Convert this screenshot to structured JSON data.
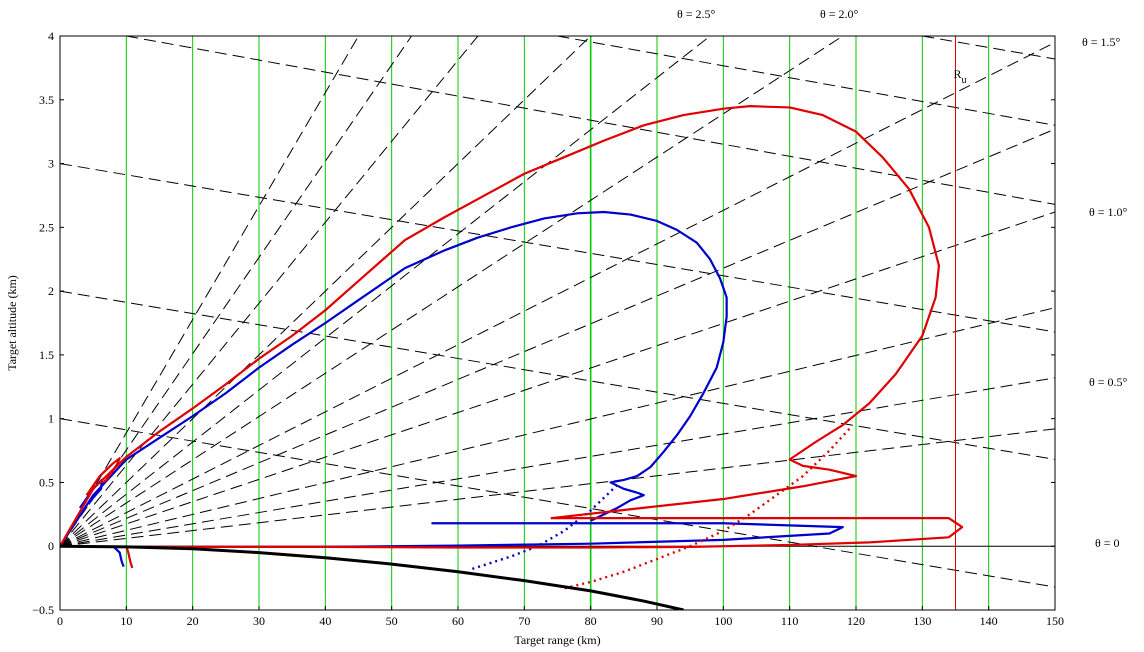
{
  "chart_data": {
    "type": "line",
    "title": "",
    "xlabel": "Target range (km)",
    "ylabel": "Target altitude (km)",
    "xlim": [
      0,
      150
    ],
    "ylim": [
      -0.5,
      4
    ],
    "xticks": [
      "0",
      "10",
      "20",
      "30",
      "40",
      "50",
      "60",
      "70",
      "80",
      "90",
      "100",
      "110",
      "120",
      "130",
      "140",
      "150"
    ],
    "yticks": [
      "−0.5",
      "0",
      "0.5",
      "1",
      "1.5",
      "2",
      "2.5",
      "3",
      "3.5",
      "4"
    ],
    "grid": {
      "vertical": true,
      "horizontal": false,
      "color": "#00cc00"
    },
    "colors": {
      "blue": "#0000cc",
      "red": "#e00000",
      "black": "#000000",
      "grid": "#00cc00"
    },
    "vertical_marker": {
      "x": 135,
      "label": "R",
      "subscript": "u",
      "color": "#e00000"
    },
    "angle_annotations": [
      {
        "text": "θ = 2.5°"
      },
      {
        "text": "θ = 2.0°"
      },
      {
        "text": "θ = 1.5°"
      },
      {
        "text": "θ = 1.0°"
      },
      {
        "text": "θ = 0.5°"
      },
      {
        "text": "θ = 0"
      }
    ],
    "series": [
      {
        "color": "#0000cc",
        "style": "solid",
        "x": [
          0,
          5,
          10,
          15,
          20,
          25,
          30,
          35,
          40,
          45,
          52,
          58,
          63,
          68,
          73,
          78,
          82,
          86,
          90,
          93,
          96,
          98,
          99.5,
          100.5,
          100.5,
          100,
          99,
          97,
          95,
          93,
          91,
          89,
          87,
          85,
          83,
          85,
          87,
          88,
          86,
          84,
          82,
          80
        ],
        "y": [
          0,
          0.4,
          0.68,
          0.85,
          1.02,
          1.2,
          1.4,
          1.58,
          1.75,
          1.93,
          2.18,
          2.32,
          2.42,
          2.5,
          2.57,
          2.61,
          2.62,
          2.6,
          2.55,
          2.48,
          2.38,
          2.25,
          2.1,
          1.95,
          1.8,
          1.6,
          1.4,
          1.2,
          1.02,
          0.87,
          0.74,
          0.62,
          0.55,
          0.52,
          0.5,
          0.45,
          0.42,
          0.4,
          0.36,
          0.3,
          0.25,
          0.2
        ]
      },
      {
        "color": "#0000cc",
        "style": "solid",
        "x": [
          56,
          78,
          100,
          118,
          116,
          100,
          80,
          60,
          40,
          20,
          10
        ],
        "y": [
          0.18,
          0.18,
          0.18,
          0.15,
          0.1,
          0.05,
          0.02,
          0.005,
          -0.005,
          -0.005,
          -0.005
        ]
      },
      {
        "color": "#0000cc",
        "style": "dotted",
        "x": [
          84,
          80,
          76,
          72,
          68,
          65,
          62
        ],
        "y": [
          0.48,
          0.28,
          0.12,
          0.0,
          -0.08,
          -0.13,
          -0.18
        ]
      },
      {
        "color": "#0000cc",
        "style": "solid",
        "x": [
          3,
          5,
          6.3,
          6.2,
          5,
          4.3
        ],
        "y": [
          0.3,
          0.45,
          0.52,
          0.45,
          0.38,
          0.33
        ]
      },
      {
        "color": "#0000cc",
        "style": "solid",
        "x": [
          8,
          9,
          9.3,
          9.6
        ],
        "y": [
          0.0,
          -0.05,
          -0.12,
          -0.16
        ]
      },
      {
        "color": "#e00000",
        "style": "solid",
        "x": [
          0,
          5,
          10,
          15,
          20,
          25,
          30,
          35,
          40,
          45,
          52,
          58,
          64,
          70,
          76,
          82,
          88,
          94,
          100,
          104,
          110,
          115,
          120,
          124,
          128,
          131,
          132.5,
          132,
          130,
          126,
          122,
          118,
          114,
          110,
          112,
          116,
          120,
          112,
          100,
          86,
          74
        ],
        "y": [
          0,
          0.45,
          0.7,
          0.9,
          1.08,
          1.27,
          1.47,
          1.65,
          1.85,
          2.08,
          2.4,
          2.58,
          2.75,
          2.92,
          3.05,
          3.18,
          3.3,
          3.38,
          3.43,
          3.45,
          3.44,
          3.38,
          3.25,
          3.05,
          2.8,
          2.5,
          2.2,
          1.95,
          1.65,
          1.35,
          1.12,
          0.95,
          0.82,
          0.68,
          0.63,
          0.6,
          0.55,
          0.47,
          0.37,
          0.29,
          0.22
        ]
      },
      {
        "color": "#e00000",
        "style": "solid",
        "x": [
          74,
          100,
          134,
          136,
          134,
          122,
          110,
          95,
          80,
          60,
          40,
          20,
          10
        ],
        "y": [
          0.22,
          0.22,
          0.22,
          0.15,
          0.07,
          0.03,
          0.01,
          -0.005,
          -0.01,
          -0.01,
          -0.005,
          -0.005,
          -0.005
        ]
      },
      {
        "color": "#e00000",
        "style": "dotted",
        "x": [
          119,
          116,
          112,
          108,
          104,
          100,
          95,
          90,
          85,
          80,
          76
        ],
        "y": [
          0.92,
          0.75,
          0.55,
          0.4,
          0.25,
          0.12,
          0.0,
          -0.1,
          -0.2,
          -0.28,
          -0.33
        ]
      },
      {
        "color": "#e00000",
        "style": "solid",
        "x": [
          4,
          6,
          8,
          9,
          8.5,
          7,
          6.5
        ],
        "y": [
          0.4,
          0.55,
          0.65,
          0.69,
          0.63,
          0.52,
          0.5
        ]
      },
      {
        "color": "#e00000",
        "style": "solid",
        "x": [
          10,
          10.3,
          10.6,
          10.9
        ],
        "y": [
          0.0,
          -0.05,
          -0.12,
          -0.17
        ]
      },
      {
        "color": "#000000",
        "style": "solid_thick",
        "x": [
          0,
          10,
          20,
          30,
          40,
          50,
          60,
          70,
          80,
          88,
          94
        ],
        "y": [
          0,
          -0.005,
          -0.02,
          -0.05,
          -0.09,
          -0.14,
          -0.2,
          -0.27,
          -0.35,
          -0.43,
          -0.5
        ]
      }
    ],
    "dashed_series": [
      {
        "x": [
          0,
          150
        ],
        "y": [
          0,
          0.92
        ]
      },
      {
        "x": [
          0,
          150
        ],
        "y": [
          0,
          1.32
        ]
      },
      {
        "x": [
          0,
          150
        ],
        "y": [
          0,
          1.87
        ]
      },
      {
        "x": [
          0,
          150
        ],
        "y": [
          0,
          2.62
        ]
      },
      {
        "x": [
          0,
          150
        ],
        "y": [
          0,
          3.27
        ]
      },
      {
        "x": [
          0,
          150
        ],
        "y": [
          0,
          3.95
        ]
      },
      {
        "x": [
          0,
          118
        ],
        "y": [
          0,
          4.0
        ]
      },
      {
        "x": [
          0,
          98
        ],
        "y": [
          0,
          4.0
        ]
      },
      {
        "x": [
          0,
          80
        ],
        "y": [
          0,
          4.0
        ]
      },
      {
        "x": [
          0,
          63
        ],
        "y": [
          0,
          4.0
        ]
      },
      {
        "x": [
          0,
          53
        ],
        "y": [
          0,
          4.0
        ]
      },
      {
        "x": [
          0,
          45
        ],
        "y": [
          0,
          4.0
        ]
      },
      {
        "x": [
          0,
          150
        ],
        "y": [
          1.0,
          -0.32
        ]
      },
      {
        "x": [
          0,
          150
        ],
        "y": [
          2.0,
          0.68
        ]
      },
      {
        "x": [
          0,
          150
        ],
        "y": [
          3.0,
          1.68
        ]
      },
      {
        "x": [
          10,
          150
        ],
        "y": [
          4.0,
          2.68
        ]
      },
      {
        "x": [
          75,
          150
        ],
        "y": [
          4.0,
          3.3
        ]
      },
      {
        "x": [
          130,
          150
        ],
        "y": [
          4.0,
          3.82
        ]
      }
    ]
  }
}
